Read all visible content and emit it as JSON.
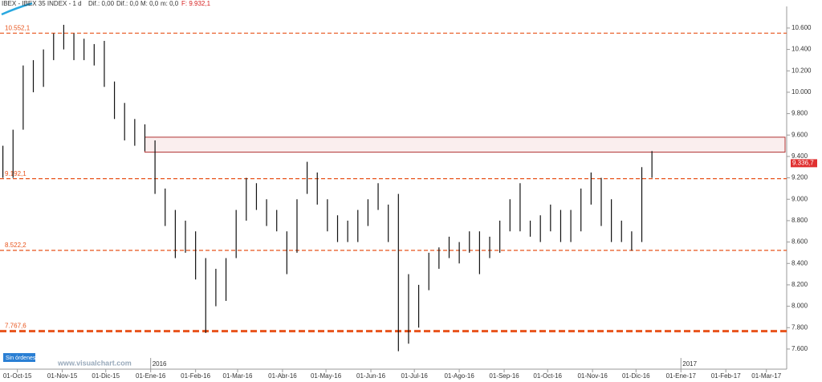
{
  "header": {
    "title": "IBEX - IBEX 35 INDEX - 1 d",
    "stats": [
      "Dif.: 0,00",
      "Dif.: 0,0",
      "M: 0,0",
      "m: 0,0"
    ],
    "last": "F: 9.932,1"
  },
  "footer": {
    "orders": "Sin órdenes",
    "site": "www.visualchart.com"
  },
  "chart_data": {
    "type": "ohlc",
    "color": "#111111",
    "level_color": "#e8541c",
    "zone_color": "#b03030",
    "xlim": [
      "2015-09-19",
      "2017-03-15"
    ],
    "ylim": [
      7412,
      10802
    ],
    "yticks": [
      {
        "value": 7600,
        "label": "7.600"
      },
      {
        "value": 7800,
        "label": "7.800"
      },
      {
        "value": 8000,
        "label": "8.000"
      },
      {
        "value": 8200,
        "label": "8.200"
      },
      {
        "value": 8400,
        "label": "8.400"
      },
      {
        "value": 8600,
        "label": "8.600"
      },
      {
        "value": 8800,
        "label": "8.800"
      },
      {
        "value": 9000,
        "label": "9.000"
      },
      {
        "value": 9200,
        "label": "9.200"
      },
      {
        "value": 9400,
        "label": "9.400"
      },
      {
        "value": 9600,
        "label": "9.600"
      },
      {
        "value": 9800,
        "label": "9.800"
      },
      {
        "value": 10000,
        "label": "10.000"
      },
      {
        "value": 10200,
        "label": "10.200"
      },
      {
        "value": 10400,
        "label": "10.400"
      },
      {
        "value": 10600,
        "label": "10.600"
      }
    ],
    "xticks": [
      {
        "value": "2015-10-01",
        "label": "01-Oct-15"
      },
      {
        "value": "2015-11-01",
        "label": "01-Nov-15"
      },
      {
        "value": "2015-12-01",
        "label": "01-Dic-15"
      },
      {
        "value": "2016-01-01",
        "label": "01-Ene-16"
      },
      {
        "value": "2016-02-01",
        "label": "01-Feb-16"
      },
      {
        "value": "2016-03-01",
        "label": "01-Mar-16"
      },
      {
        "value": "2016-04-01",
        "label": "01-Abr-16"
      },
      {
        "value": "2016-05-01",
        "label": "01-May-16"
      },
      {
        "value": "2016-06-01",
        "label": "01-Jun-16"
      },
      {
        "value": "2016-07-01",
        "label": "01-Jul-16"
      },
      {
        "value": "2016-08-01",
        "label": "01-Ago-16"
      },
      {
        "value": "2016-09-01",
        "label": "01-Sep-16"
      },
      {
        "value": "2016-10-01",
        "label": "01-Oct-16"
      },
      {
        "value": "2016-11-01",
        "label": "01-Nov-16"
      },
      {
        "value": "2016-12-01",
        "label": "01-Dic-16"
      },
      {
        "value": "2017-01-01",
        "label": "01-Ene-17"
      },
      {
        "value": "2017-02-01",
        "label": "01-Feb-17"
      },
      {
        "value": "2017-03-01",
        "label": "01-Mar-17"
      }
    ],
    "year_marks": [
      {
        "value": "2016-01-01",
        "label": "2016"
      },
      {
        "value": "2017-01-01",
        "label": "2017"
      }
    ],
    "levels": [
      {
        "value": 10552.1,
        "label": "10.552,1"
      },
      {
        "value": 9192.1,
        "label": "9.192,1"
      },
      {
        "value": 8522.2,
        "label": "8.522,2"
      },
      {
        "value": 7767.6,
        "label": "7.767,6"
      }
    ],
    "zone": {
      "low": 9440,
      "high": 9580,
      "start": "2015-12-28"
    },
    "last_price": {
      "value": 9336.7,
      "label": "9.336,7"
    },
    "x": [
      "2015-09-21",
      "2015-09-28",
      "2015-10-05",
      "2015-10-12",
      "2015-10-19",
      "2015-10-26",
      "2015-11-02",
      "2015-11-09",
      "2015-11-16",
      "2015-11-23",
      "2015-11-30",
      "2015-12-07",
      "2015-12-14",
      "2015-12-21",
      "2015-12-28",
      "2016-01-04",
      "2016-01-11",
      "2016-01-18",
      "2016-01-25",
      "2016-02-01",
      "2016-02-08",
      "2016-02-15",
      "2016-02-22",
      "2016-02-29",
      "2016-03-07",
      "2016-03-14",
      "2016-03-21",
      "2016-03-28",
      "2016-04-04",
      "2016-04-11",
      "2016-04-18",
      "2016-04-25",
      "2016-05-02",
      "2016-05-09",
      "2016-05-16",
      "2016-05-23",
      "2016-05-30",
      "2016-06-06",
      "2016-06-13",
      "2016-06-20",
      "2016-06-27",
      "2016-07-04",
      "2016-07-11",
      "2016-07-18",
      "2016-07-25",
      "2016-08-01",
      "2016-08-08",
      "2016-08-15",
      "2016-08-22",
      "2016-08-29",
      "2016-09-05",
      "2016-09-12",
      "2016-09-19",
      "2016-09-26",
      "2016-10-03",
      "2016-10-10",
      "2016-10-17",
      "2016-10-24",
      "2016-10-31",
      "2016-11-07",
      "2016-11-14",
      "2016-11-21",
      "2016-11-28",
      "2016-12-05",
      "2016-12-12"
    ],
    "high": [
      9500,
      9650,
      10250,
      10300,
      10400,
      10550,
      10630,
      10550,
      10500,
      10450,
      10480,
      10100,
      9900,
      9750,
      9700,
      9550,
      9100,
      8900,
      8800,
      8700,
      8450,
      8350,
      8450,
      8900,
      9200,
      9150,
      9000,
      8900,
      8700,
      9000,
      9350,
      9250,
      9000,
      8850,
      8800,
      8900,
      9000,
      9150,
      8950,
      9050,
      8300,
      8200,
      8500,
      8550,
      8650,
      8600,
      8700,
      8700,
      8650,
      8800,
      9000,
      9150,
      8800,
      8850,
      8950,
      8900,
      8900,
      9100,
      9250,
      9200,
      9000,
      8800,
      8700,
      9300,
      9450
    ],
    "low": [
      9200,
      9200,
      9650,
      10000,
      10050,
      10300,
      10400,
      10300,
      10300,
      10250,
      10050,
      9750,
      9550,
      9500,
      9450,
      9050,
      8750,
      8450,
      8500,
      8250,
      7750,
      8000,
      8050,
      8450,
      8800,
      8900,
      8750,
      8700,
      8300,
      8500,
      9050,
      8950,
      8700,
      8600,
      8600,
      8600,
      8750,
      8900,
      8600,
      7580,
      7650,
      7800,
      8150,
      8350,
      8450,
      8400,
      8500,
      8300,
      8450,
      8500,
      8700,
      8700,
      8650,
      8600,
      8700,
      8600,
      8600,
      8700,
      8950,
      8750,
      8600,
      8600,
      8520,
      8600,
      9200
    ]
  }
}
